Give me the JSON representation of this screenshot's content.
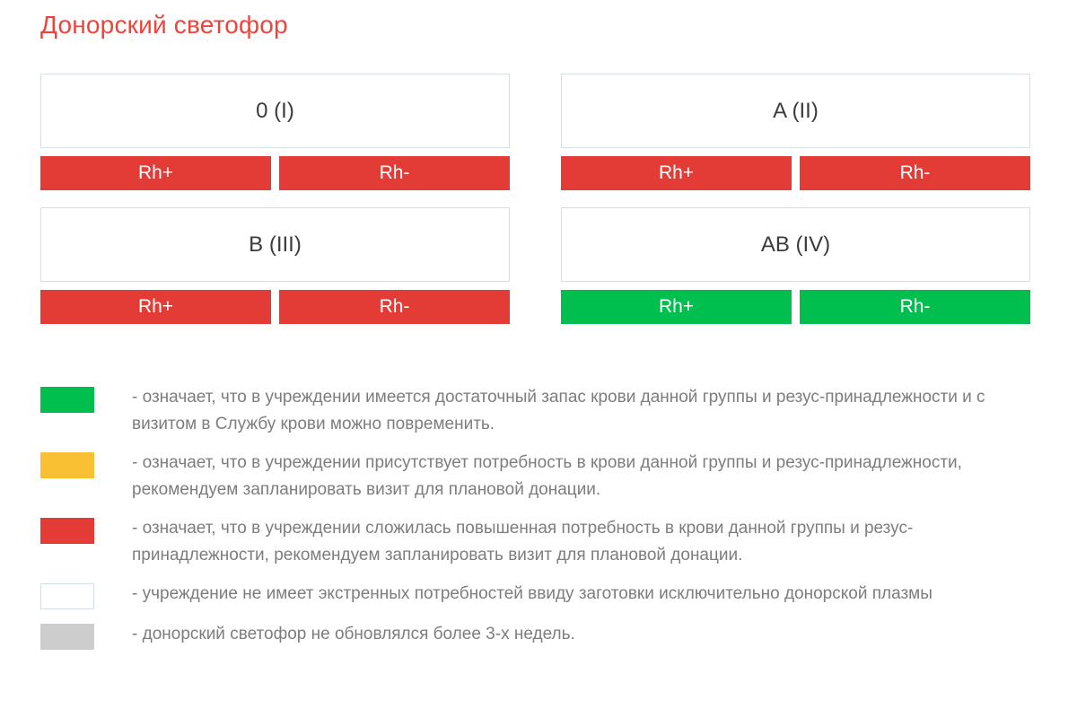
{
  "title": "Донорский светофор",
  "colors": {
    "title": "#ee443b",
    "red": "#e33b35",
    "green": "#00bf4e",
    "yellow": "#f8c032",
    "gray": "#cdcdcd",
    "card_border": "#d6e0e4",
    "white_border": "#cfe0e6",
    "text_dark": "#3b3b3b",
    "text_gray": "#7d7d7d"
  },
  "blood_groups": [
    {
      "name": "0 (I)",
      "rh_plus_label": "Rh+",
      "rh_plus_status": "red",
      "rh_minus_label": "Rh-",
      "rh_minus_status": "red"
    },
    {
      "name": "A (II)",
      "rh_plus_label": "Rh+",
      "rh_plus_status": "red",
      "rh_minus_label": "Rh-",
      "rh_minus_status": "red"
    },
    {
      "name": "B (III)",
      "rh_plus_label": "Rh+",
      "rh_plus_status": "red",
      "rh_minus_label": "Rh-",
      "rh_minus_status": "red"
    },
    {
      "name": "AB (IV)",
      "rh_plus_label": "Rh+",
      "rh_plus_status": "green",
      "rh_minus_label": "Rh-",
      "rh_minus_status": "green"
    }
  ],
  "legend": [
    {
      "status": "green",
      "text": "- означает, что в учреждении имеется достаточный запас крови данной группы и резус-принадлежности и с визитом в Службу крови можно повременить."
    },
    {
      "status": "yellow",
      "text": "- означает, что в учреждении присутствует потребность в крови данной группы и резус-принадлежности, рекомендуем запланировать визит для плановой донации."
    },
    {
      "status": "red",
      "text": "- означает, что в учреждении сложилась повышенная потребность в крови данной группы и резус-принадлежности, рекомендуем запланировать визит для плановой донации."
    },
    {
      "status": "white",
      "text": "- учреждение не имеет экстренных потребностей ввиду заготовки исключительно донорской плазмы"
    },
    {
      "status": "gray",
      "text": "- донорский светофор не обновлялся более 3-х недель."
    }
  ]
}
